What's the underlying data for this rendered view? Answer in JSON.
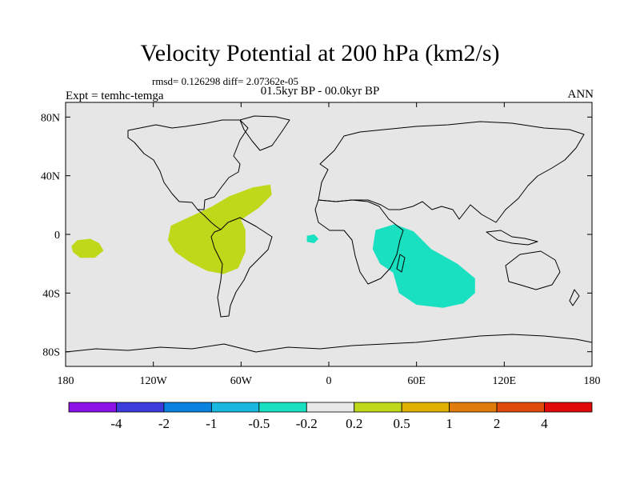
{
  "title": "Velocity Potential at 200 hPa (km2/s)",
  "stats_line": "rmsd= 0.126298 diff= 2.07362e-05",
  "period_line": "01.5kyr BP - 00.0kyr BP",
  "experiment_label": "Expt = temhc-temga",
  "season_label": "ANN",
  "map": {
    "projection": "cylindrical equidistant",
    "lon_range": [
      -180,
      180
    ],
    "lat_range": [
      -90,
      90
    ],
    "background_color": "#e6e6e6",
    "x_ticks": [
      {
        "lon": -180,
        "label": "180"
      },
      {
        "lon": -120,
        "label": "120W"
      },
      {
        "lon": -60,
        "label": "60W"
      },
      {
        "lon": 0,
        "label": "0"
      },
      {
        "lon": 60,
        "label": "60E"
      },
      {
        "lon": 120,
        "label": "120E"
      },
      {
        "lon": 180,
        "label": "180"
      }
    ],
    "y_ticks": [
      {
        "lat": 80,
        "label": "80N"
      },
      {
        "lat": 40,
        "label": "40N"
      },
      {
        "lat": 0,
        "label": "0"
      },
      {
        "lat": -40,
        "label": "40S"
      },
      {
        "lat": -80,
        "label": "80S"
      }
    ]
  },
  "anomaly_regions": [
    {
      "name": "central-pacific-positive",
      "category": "0.2 to 0.5",
      "color": "#bfd81a",
      "outline": [
        [
          -172,
          -4
        ],
        [
          -163,
          -3
        ],
        [
          -157,
          -6
        ],
        [
          -154,
          -11
        ],
        [
          -160,
          -16
        ],
        [
          -170,
          -16
        ],
        [
          -175,
          -12
        ],
        [
          -176,
          -8
        ]
      ]
    },
    {
      "name": "south-america-positive",
      "category": "0.2 to 0.5",
      "color": "#bfd81a",
      "outline": [
        [
          -108,
          6
        ],
        [
          -95,
          12
        ],
        [
          -80,
          19
        ],
        [
          -68,
          26
        ],
        [
          -52,
          32
        ],
        [
          -40,
          34
        ],
        [
          -39,
          27
        ],
        [
          -48,
          18
        ],
        [
          -60,
          10
        ],
        [
          -57,
          3
        ],
        [
          -57,
          -12
        ],
        [
          -62,
          -23
        ],
        [
          -72,
          -27
        ],
        [
          -83,
          -25
        ],
        [
          -95,
          -19
        ],
        [
          -105,
          -12
        ],
        [
          -110,
          -4
        ]
      ]
    },
    {
      "name": "atlantic-negative-small",
      "category": "-0.5 to -0.2",
      "color": "#19e0c0",
      "outline": [
        [
          -15,
          -1
        ],
        [
          -10,
          0
        ],
        [
          -7,
          -3
        ],
        [
          -10,
          -6
        ],
        [
          -15,
          -5
        ]
      ]
    },
    {
      "name": "indian-ocean-negative",
      "category": "-0.5 to -0.2",
      "color": "#19e0c0",
      "outline": [
        [
          32,
          3
        ],
        [
          45,
          7
        ],
        [
          58,
          2
        ],
        [
          70,
          -10
        ],
        [
          88,
          -20
        ],
        [
          100,
          -30
        ],
        [
          100,
          -40
        ],
        [
          92,
          -47
        ],
        [
          78,
          -50
        ],
        [
          60,
          -48
        ],
        [
          48,
          -40
        ],
        [
          44,
          -26
        ],
        [
          35,
          -20
        ],
        [
          30,
          -10
        ]
      ]
    }
  ],
  "colorbar": {
    "labels": [
      "-4",
      "-2",
      "-1",
      "-0.5",
      "-0.2",
      "0.2",
      "0.5",
      "1",
      "2",
      "4"
    ],
    "colors": [
      "#8a12e6",
      "#3c3cdc",
      "#0a82e0",
      "#19b8e0",
      "#19e0c0",
      "#e8e8e8",
      "#bfd81a",
      "#e0b000",
      "#e07c0a",
      "#e04a0a",
      "#e00a0a"
    ]
  }
}
